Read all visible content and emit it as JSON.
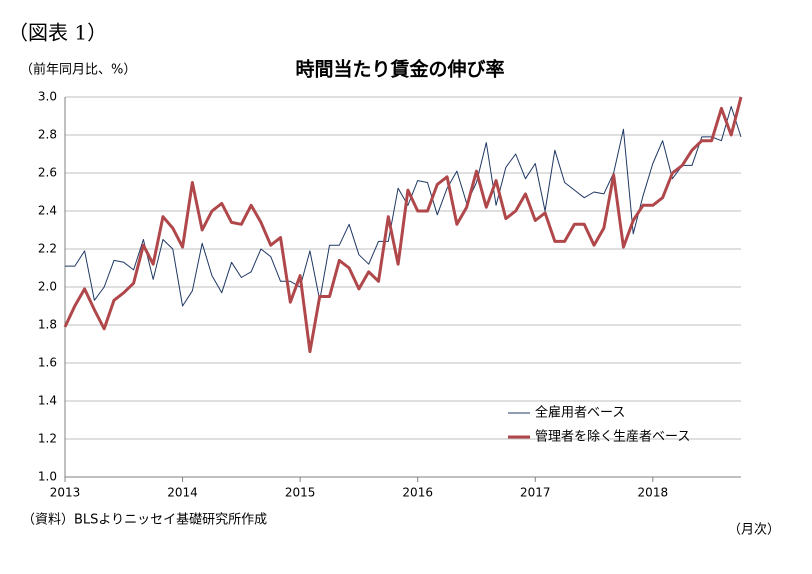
{
  "chart_data": {
    "type": "line",
    "figure_label": "（図表 1）",
    "title": "時間当たり賃金の伸び率",
    "y_label": "（前年同月比、%）",
    "x_label": "（月次）",
    "source": "（資料）BLSよりニッセイ基礎研究所作成",
    "categories": [
      "2013",
      null,
      null,
      null,
      null,
      null,
      null,
      null,
      null,
      null,
      null,
      null,
      "2014",
      null,
      null,
      null,
      null,
      null,
      null,
      null,
      null,
      null,
      null,
      null,
      "2015",
      null,
      null,
      null,
      null,
      null,
      null,
      null,
      null,
      null,
      null,
      null,
      "2016",
      null,
      null,
      null,
      null,
      null,
      null,
      null,
      null,
      null,
      null,
      null,
      "2017",
      null,
      null,
      null,
      null,
      null,
      null,
      null,
      null,
      null,
      null,
      null,
      "2018",
      null,
      null,
      null,
      null,
      null,
      null,
      null,
      null,
      null
    ],
    "series": [
      {
        "name": "全雇用者ベース",
        "color": "#1f3864",
        "width": 1,
        "values": [
          2.11,
          2.11,
          2.19,
          1.93,
          2.0,
          2.14,
          2.13,
          2.09,
          2.25,
          2.04,
          2.25,
          2.2,
          1.9,
          1.98,
          2.23,
          2.06,
          1.97,
          2.13,
          2.05,
          2.08,
          2.2,
          2.16,
          2.03,
          2.03,
          2.0,
          2.19,
          1.93,
          2.22,
          2.22,
          2.33,
          2.17,
          2.12,
          2.24,
          2.24,
          2.52,
          2.43,
          2.56,
          2.55,
          2.38,
          2.52,
          2.61,
          2.44,
          2.55,
          2.76,
          2.43,
          2.63,
          2.7,
          2.57,
          2.65,
          2.4,
          2.72,
          2.55,
          2.51,
          2.47,
          2.5,
          2.49,
          2.6,
          2.83,
          2.28,
          2.48,
          2.65,
          2.77,
          2.57,
          2.64,
          2.64,
          2.79,
          2.79,
          2.77,
          2.95,
          2.79
        ]
      },
      {
        "name": "管理者を除く生産者ベース",
        "color": "#b0474a",
        "width": 3,
        "values": [
          1.79,
          1.9,
          1.99,
          1.88,
          1.78,
          1.93,
          1.97,
          2.02,
          2.22,
          2.12,
          2.37,
          2.31,
          2.21,
          2.55,
          2.3,
          2.4,
          2.44,
          2.34,
          2.33,
          2.43,
          2.34,
          2.22,
          2.26,
          1.92,
          2.06,
          1.66,
          1.95,
          1.95,
          2.14,
          2.1,
          1.99,
          2.08,
          2.03,
          2.37,
          2.12,
          2.51,
          2.4,
          2.4,
          2.54,
          2.58,
          2.33,
          2.42,
          2.61,
          2.42,
          2.56,
          2.36,
          2.4,
          2.49,
          2.35,
          2.39,
          2.24,
          2.24,
          2.33,
          2.33,
          2.22,
          2.31,
          2.59,
          2.21,
          2.35,
          2.43,
          2.43,
          2.47,
          2.6,
          2.64,
          2.72,
          2.77,
          2.77,
          2.94,
          2.8,
          3.0
        ]
      }
    ],
    "ylim": [
      1.0,
      3.0
    ],
    "yticks": [
      {
        "value": 1.0,
        "label": "1.0"
      },
      {
        "value": 1.2,
        "label": "1.2"
      },
      {
        "value": 1.4,
        "label": "1.4"
      },
      {
        "value": 1.6,
        "label": "1.6"
      },
      {
        "value": 1.8,
        "label": "1.8"
      },
      {
        "value": 2.0,
        "label": "2.0"
      },
      {
        "value": 2.2,
        "label": "2.2"
      },
      {
        "value": 2.4,
        "label": "2.4"
      },
      {
        "value": 2.6,
        "label": "2.6"
      },
      {
        "value": 2.8,
        "label": "2.8"
      },
      {
        "value": 3.0,
        "label": "3.0"
      }
    ],
    "grid": true,
    "legend": "lower right"
  }
}
